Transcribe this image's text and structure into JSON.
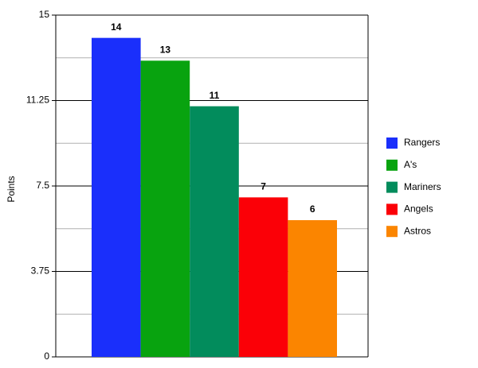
{
  "chart_data": {
    "type": "bar",
    "y_label": "Points",
    "categories": [
      null
    ],
    "series": [
      {
        "name": "Rangers",
        "color": "#1a2ffb",
        "values": [
          14
        ]
      },
      {
        "name": "A's",
        "color": "#08a30f",
        "values": [
          13
        ]
      },
      {
        "name": "Mariners",
        "color": "#028c5c",
        "values": [
          11
        ]
      },
      {
        "name": "Angels",
        "color": "#fb0007",
        "values": [
          7
        ]
      },
      {
        "name": "Astros",
        "color": "#fb8500",
        "values": [
          6
        ]
      }
    ],
    "ylim": [
      0,
      15
    ],
    "yticks": [
      0,
      3.75,
      7.5,
      11.25,
      15
    ],
    "yminor": [
      1.875,
      5.625,
      9.375,
      13.125
    ],
    "grid": true,
    "legend": "right"
  }
}
